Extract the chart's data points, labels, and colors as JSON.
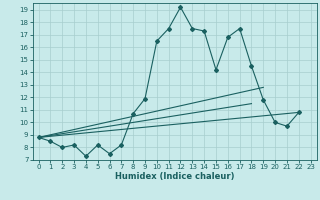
{
  "xlabel": "Humidex (Indice chaleur)",
  "bg_color": "#c8eaea",
  "grid_color": "#a8cece",
  "line_color": "#1a6060",
  "xlim": [
    -0.5,
    23.5
  ],
  "ylim": [
    7,
    19.5
  ],
  "xticks": [
    0,
    1,
    2,
    3,
    4,
    5,
    6,
    7,
    8,
    9,
    10,
    11,
    12,
    13,
    14,
    15,
    16,
    17,
    18,
    19,
    20,
    21,
    22,
    23
  ],
  "yticks": [
    7,
    8,
    9,
    10,
    11,
    12,
    13,
    14,
    15,
    16,
    17,
    18,
    19
  ],
  "main_series_x": [
    0,
    1,
    2,
    3,
    4,
    5,
    6,
    7,
    8,
    9,
    10,
    11,
    12,
    13,
    14,
    15,
    16,
    17,
    18,
    19,
    20,
    21,
    22
  ],
  "main_series_y": [
    8.8,
    8.5,
    8.0,
    8.2,
    7.3,
    8.2,
    7.5,
    8.2,
    10.7,
    11.9,
    16.5,
    17.5,
    19.2,
    17.5,
    17.3,
    14.2,
    16.8,
    17.5,
    14.5,
    11.8,
    10.0,
    9.7,
    10.8
  ],
  "linear_lines": [
    {
      "x_start": 0,
      "y_start": 8.8,
      "x_end": 22,
      "y_end": 10.8
    },
    {
      "x_start": 0,
      "y_start": 8.8,
      "x_end": 19,
      "y_end": 12.8
    },
    {
      "x_start": 0,
      "y_start": 8.8,
      "x_end": 18,
      "y_end": 11.5
    }
  ],
  "tick_fontsize": 5.0,
  "xlabel_fontsize": 6.0,
  "marker": "D",
  "markersize": 2.0,
  "linewidth": 0.8
}
